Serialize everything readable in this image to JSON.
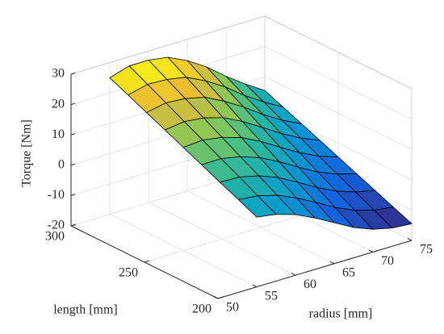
{
  "chart_data": {
    "type": "surface",
    "xlabel": "radius [mm]",
    "ylabel": "length [mm]",
    "zlabel": "Torque [Nm]",
    "x": [
      55,
      57.5,
      60,
      62.5,
      65,
      67.5,
      70,
      72.5,
      75
    ],
    "y": [
      200,
      212.5,
      225,
      237.5,
      250,
      262.5,
      275,
      287.5,
      300
    ],
    "z": [
      [
        3,
        2,
        0,
        -3,
        -6.5,
        -10,
        -12.5,
        -14,
        -14.5
      ],
      [
        5.8,
        5.1,
        3.4,
        0.6,
        -2.8,
        -6.4,
        -9.2,
        -11.1,
        -12.0
      ],
      [
        8.5,
        8.3,
        6.8,
        4.3,
        0.9,
        -2.8,
        -5.9,
        -8.1,
        -9.5
      ],
      [
        11.3,
        11.4,
        10.1,
        7.9,
        4.6,
        0.9,
        -2.6,
        -5.2,
        -7.0
      ],
      [
        14,
        14.5,
        13.5,
        11.5,
        8.3,
        4.5,
        0.8,
        -2.3,
        -4.5
      ],
      [
        16.8,
        17.6,
        16.9,
        15.1,
        11.9,
        8.1,
        4.1,
        0.7,
        -2.0
      ],
      [
        19.5,
        20.8,
        20.3,
        18.8,
        15.6,
        11.8,
        7.4,
        3.6,
        0.5
      ],
      [
        22.3,
        23.9,
        23.6,
        22.4,
        19.3,
        15.4,
        10.7,
        6.6,
        3.0
      ],
      [
        25,
        27,
        27,
        26,
        23,
        19,
        14,
        9.5,
        5.5
      ]
    ],
    "xlim": [
      50,
      75
    ],
    "xticks": [
      50,
      55,
      60,
      65,
      70,
      75
    ],
    "ylim": [
      200,
      300
    ],
    "yticks": [
      200,
      250,
      300
    ],
    "zlim": [
      -20,
      30
    ],
    "zticks": [
      -20,
      -10,
      0,
      10,
      20,
      30
    ],
    "grid": true,
    "colormap": "parula"
  }
}
